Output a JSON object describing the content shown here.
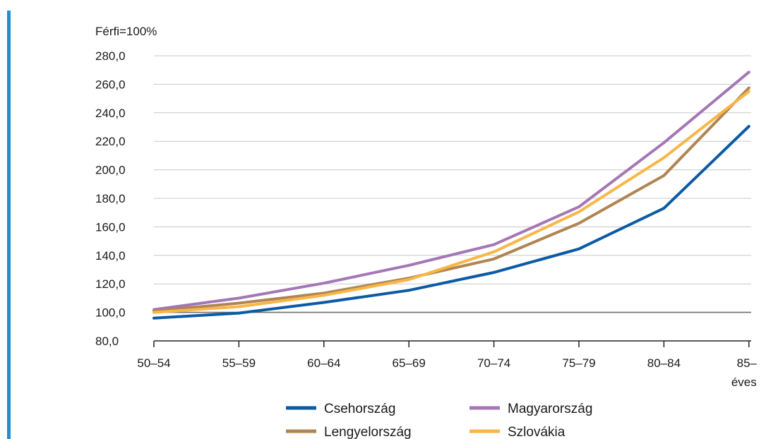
{
  "chart_data": {
    "type": "line",
    "unit_label": "Férfi=100%",
    "categories": [
      "50–54",
      "55–59",
      "60–64",
      "65–69",
      "70–74",
      "75–79",
      "80–84",
      "85–"
    ],
    "last_category_suffix": "éves",
    "ylim": [
      80,
      280
    ],
    "y_ticks": [
      "80,0",
      "100,0",
      "120,0",
      "140,0",
      "160,0",
      "180,0",
      "200,0",
      "220,0",
      "240,0",
      "260,0",
      "280,0"
    ],
    "grid": true,
    "reference_line": 100,
    "legend_position": "bottom",
    "series": [
      {
        "name": "Csehország",
        "color": "#0b5aa5",
        "values": [
          96,
          99.5,
          107,
          115.5,
          128,
          144.5,
          173,
          230.5
        ]
      },
      {
        "name": "Magyarország",
        "color": "#a476b5",
        "values": [
          102,
          110,
          120.5,
          133,
          147.5,
          174,
          219,
          268.5
        ]
      },
      {
        "name": "Lengyelország",
        "color": "#b08552",
        "values": [
          101,
          106.5,
          113.5,
          124,
          137.5,
          162.5,
          196,
          257.5
        ]
      },
      {
        "name": "Szlovákia",
        "color": "#f9b648",
        "values": [
          100,
          104,
          112,
          123,
          142.5,
          170.5,
          208.5,
          255
        ]
      }
    ]
  }
}
